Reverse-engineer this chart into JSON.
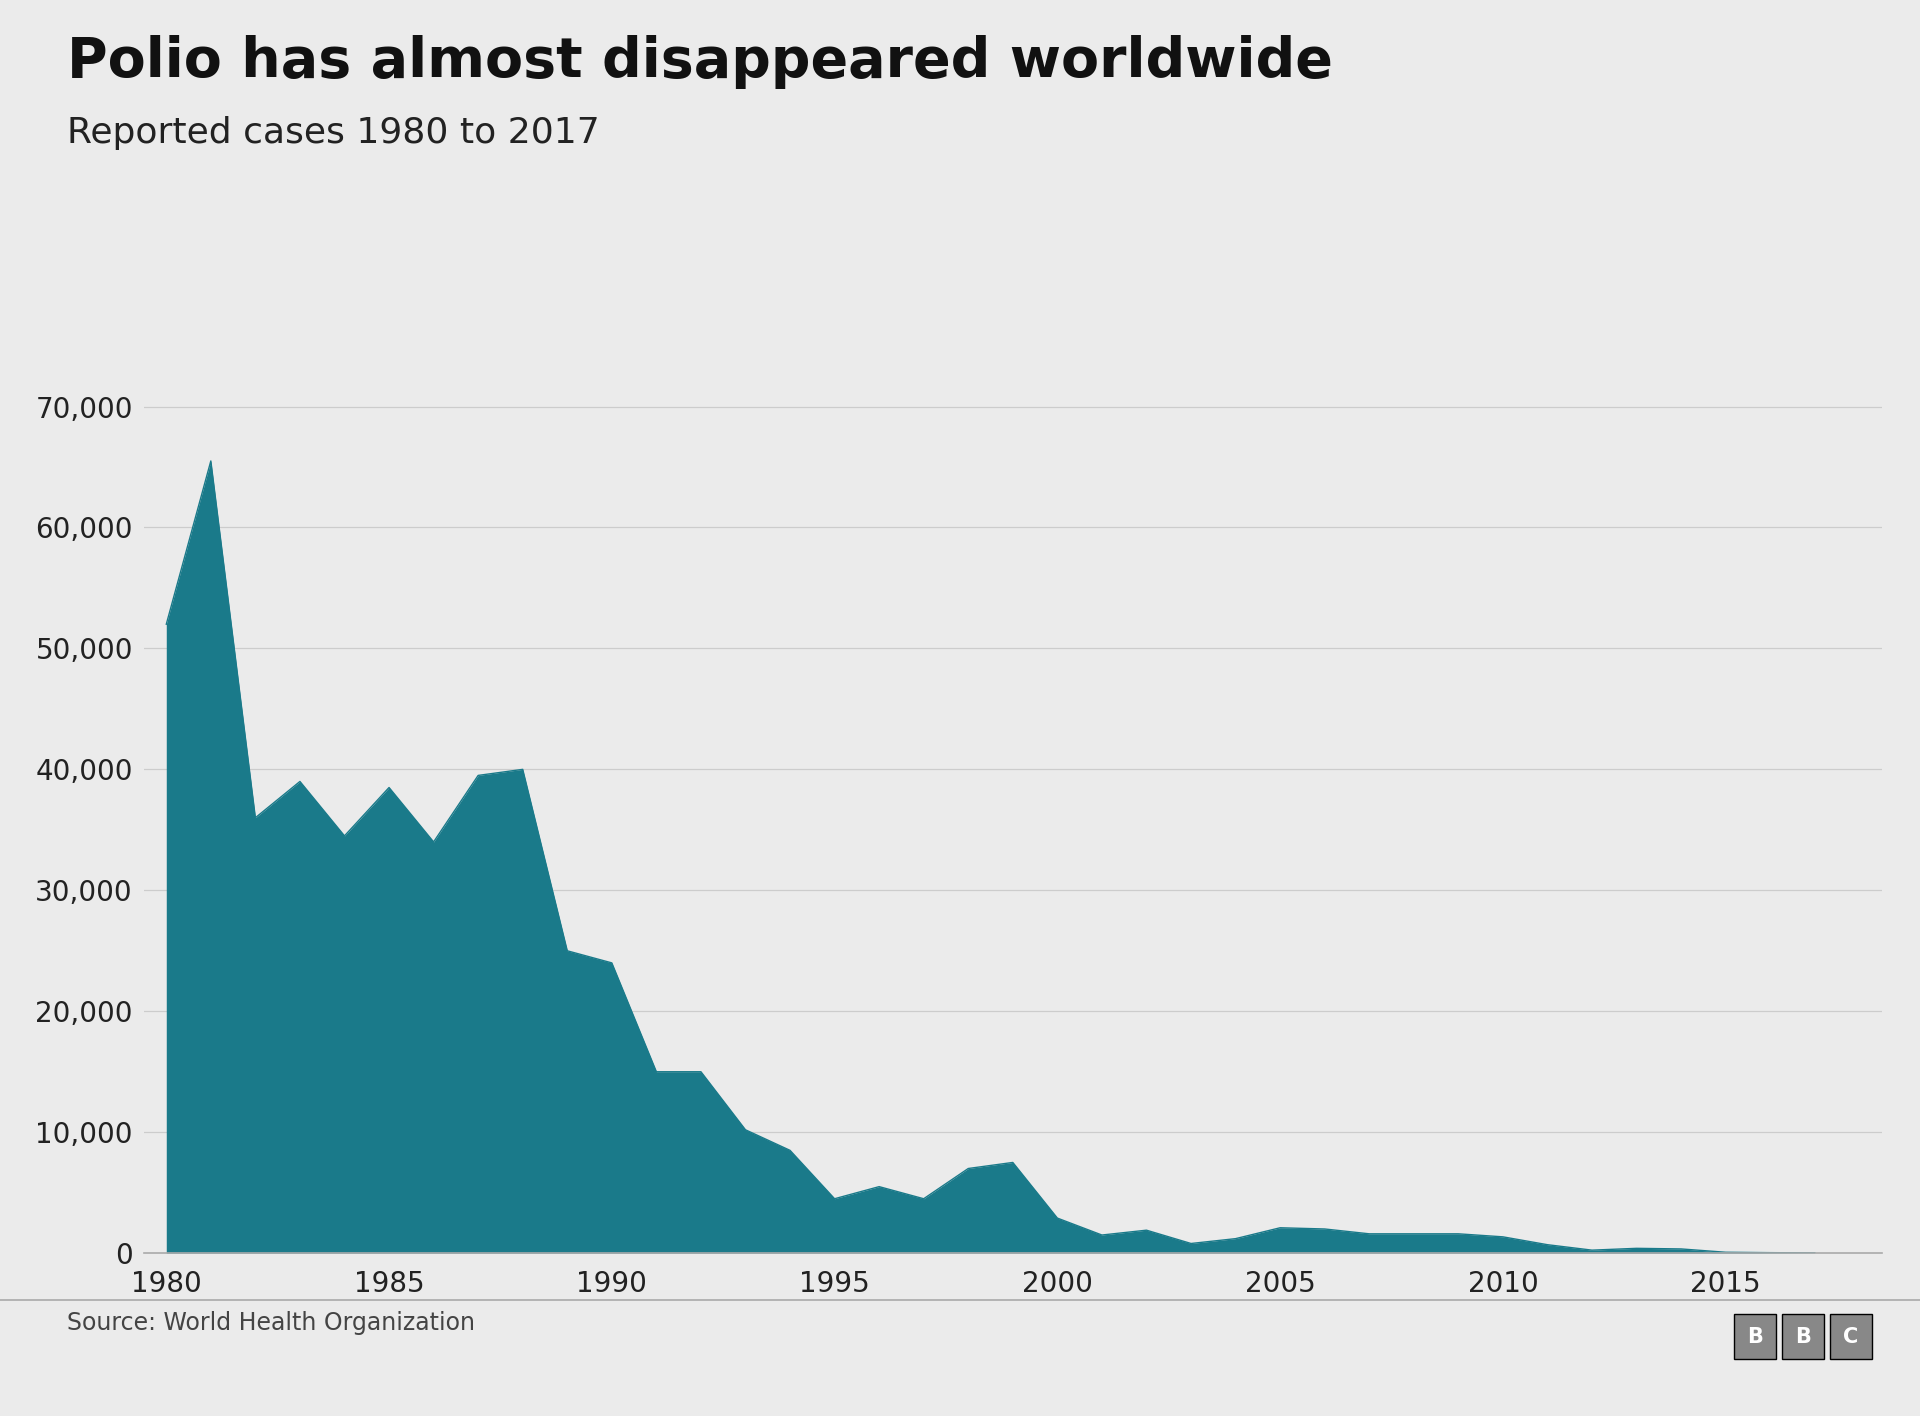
{
  "title": "Polio has almost disappeared worldwide",
  "subtitle": "Reported cases 1980 to 2017",
  "source": "Source: World Health Organization",
  "fill_color": "#1a7a8a",
  "background_color": "#ebebeb",
  "plot_background": "#ebebeb",
  "title_fontsize": 40,
  "subtitle_fontsize": 26,
  "years": [
    1980,
    1981,
    1982,
    1983,
    1984,
    1985,
    1986,
    1987,
    1988,
    1989,
    1990,
    1991,
    1992,
    1993,
    1994,
    1995,
    1996,
    1997,
    1998,
    1999,
    2000,
    2001,
    2002,
    2003,
    2004,
    2005,
    2006,
    2007,
    2008,
    2009,
    2010,
    2011,
    2012,
    2013,
    2014,
    2015,
    2016,
    2017
  ],
  "cases": [
    52000,
    65500,
    36000,
    39000,
    34500,
    38500,
    34000,
    39500,
    40000,
    25000,
    24000,
    15000,
    15000,
    10200,
    8500,
    4500,
    5500,
    4500,
    7000,
    7500,
    2900,
    1500,
    1900,
    800,
    1200,
    2100,
    2000,
    1600,
    1600,
    1600,
    1350,
    700,
    250,
    400,
    350,
    75,
    42,
    22
  ],
  "ylim": [
    0,
    72000
  ],
  "yticks": [
    0,
    10000,
    20000,
    30000,
    40000,
    50000,
    60000,
    70000
  ],
  "xlim": [
    1979.5,
    2018.5
  ],
  "xticks": [
    1980,
    1985,
    1990,
    1995,
    2000,
    2005,
    2010,
    2015
  ],
  "tick_fontsize": 20,
  "source_fontsize": 17,
  "bbc_fontsize": 15
}
